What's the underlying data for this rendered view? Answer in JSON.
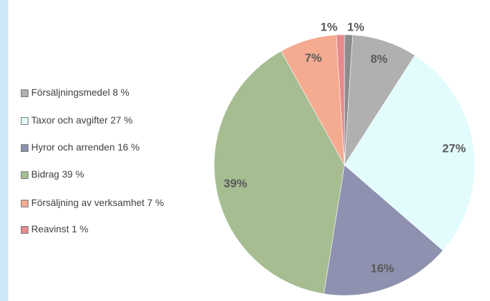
{
  "chart_data": {
    "type": "pie",
    "categories": [
      null,
      "Försäljningsmedel 8 %",
      "Taxor och avgifter 27 %",
      "Hyror och arrenden 16 %",
      "Bidrag 39 %",
      "Försäljning av verksamhet 7 %",
      "Reavinst 1 %"
    ],
    "values": [
      1,
      8,
      27,
      16,
      39,
      7,
      1
    ],
    "value_labels": [
      "1%",
      "8%",
      "27%",
      "16%",
      "39%",
      "7%",
      "1%"
    ],
    "colors": [
      "#8c8c8c",
      "#b0b0b0",
      "#e2fbfd",
      "#8e92b0",
      "#a6bd92",
      "#f4ab90",
      "#e88a8c"
    ]
  }
}
